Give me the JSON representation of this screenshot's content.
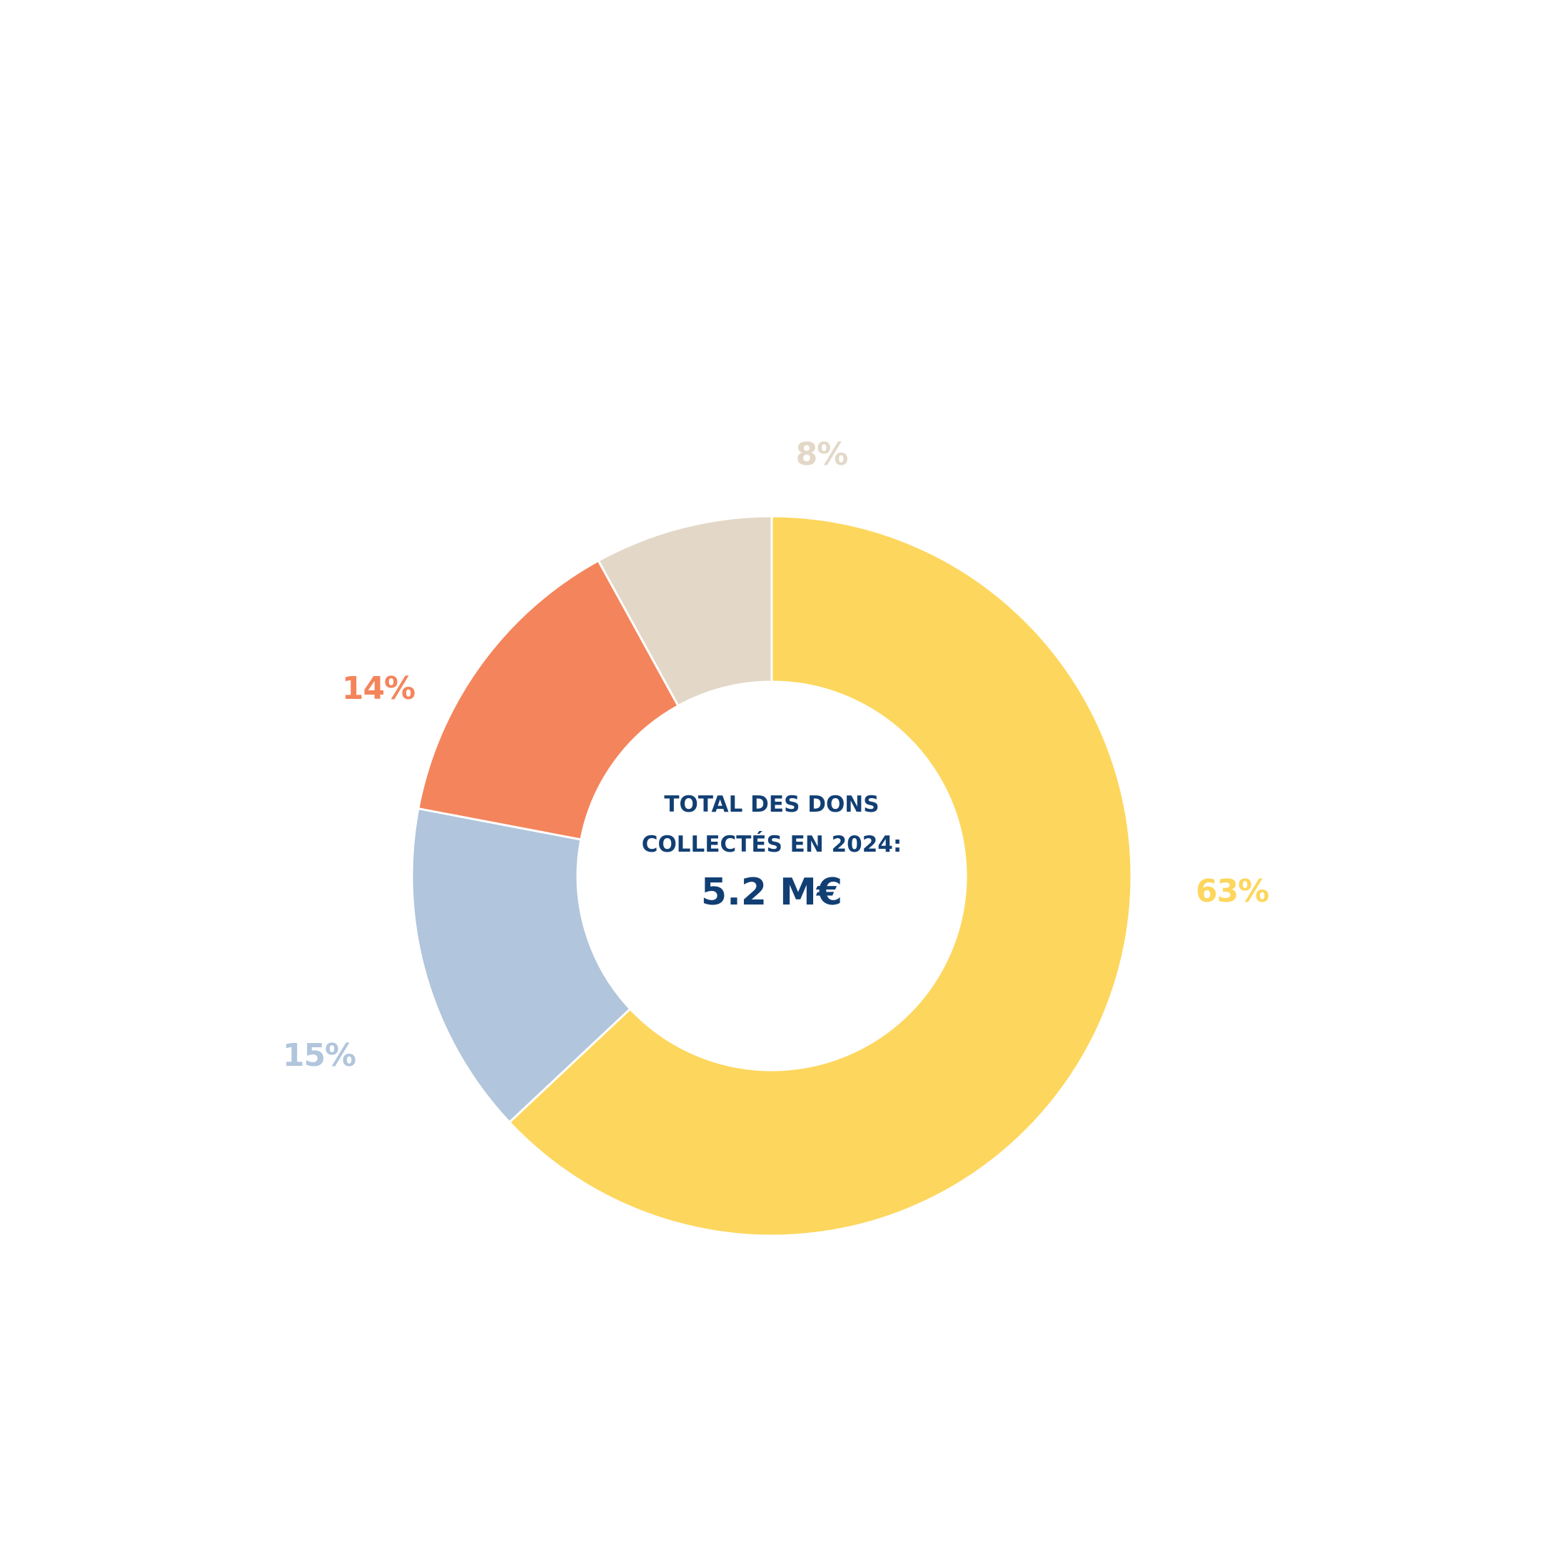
{
  "chart_data": {
    "type": "donut",
    "slices": [
      {
        "label": "63%",
        "value": 63,
        "color": "#fdd65d"
      },
      {
        "label": "15%",
        "value": 15,
        "color": "#b1c5dc"
      },
      {
        "label": "14%",
        "value": 14,
        "color": "#f4845b"
      },
      {
        "label": "8%",
        "value": 8,
        "color": "#e3d8c8"
      }
    ],
    "center_text": {
      "line1": "TOTAL DES DONS",
      "line2": "COLLECTÉS EN 2024:",
      "value": "5.2 M€"
    }
  }
}
